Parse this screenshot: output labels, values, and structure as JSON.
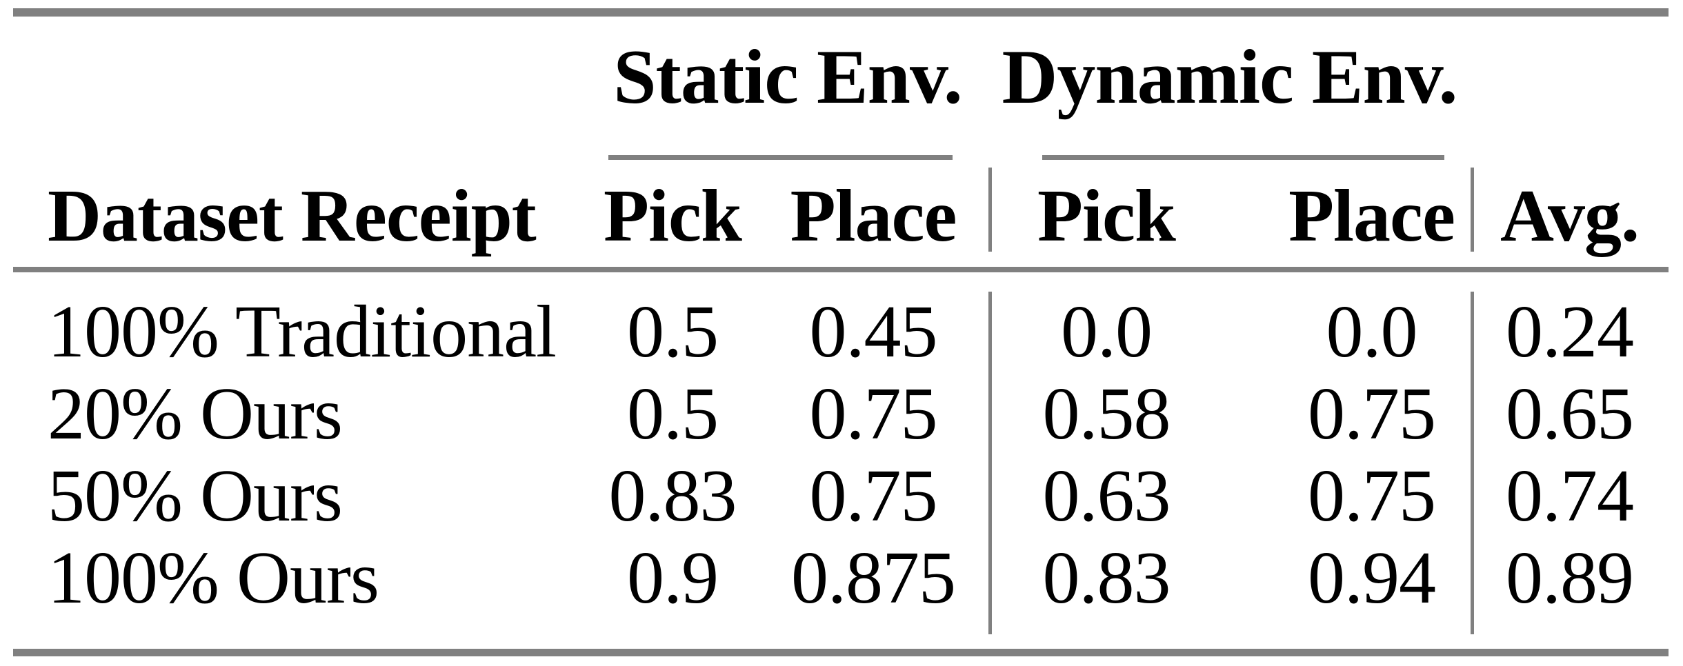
{
  "colors": {
    "rule": "#808080",
    "text": "#000000",
    "background": "#ffffff"
  },
  "table": {
    "group_headers": {
      "static": "Static Env.",
      "dynamic": "Dynamic Env."
    },
    "column_headers": [
      "Dataset Receipt",
      "Pick",
      "Place",
      "Pick",
      "Place",
      "Avg."
    ],
    "rows": [
      {
        "label": "100% Traditional",
        "values": [
          "0.5",
          "0.45",
          "0.0",
          "0.0",
          "0.24"
        ]
      },
      {
        "label": "20% Ours",
        "values": [
          "0.5",
          "0.75",
          "0.58",
          "0.75",
          "0.65"
        ]
      },
      {
        "label": "50% Ours",
        "values": [
          "0.83",
          "0.75",
          "0.63",
          "0.75",
          "0.74"
        ]
      },
      {
        "label": "100% Ours",
        "values": [
          "0.9",
          "0.875",
          "0.83",
          "0.94",
          "0.89"
        ]
      }
    ]
  }
}
